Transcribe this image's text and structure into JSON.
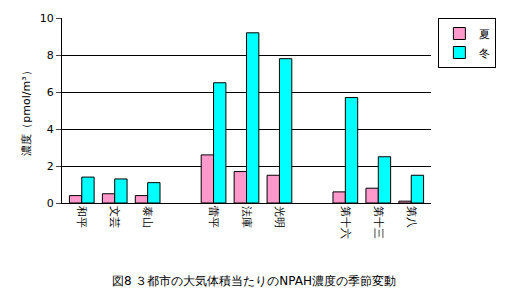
{
  "chart_data": {
    "type": "bar",
    "title": "図8 ３都市の大気体積当たりのNPAH濃度の季節変動",
    "y_label": "濃度（pmol/m³）",
    "categories": [
      "和平",
      "文芸",
      "泰山",
      null,
      "蕾平",
      "法庫",
      "光明",
      null,
      "第十六",
      "第十三",
      "第八"
    ],
    "series": [
      {
        "name": "夏",
        "color": "#ff99cc",
        "values": [
          0.4,
          0.5,
          0.4,
          null,
          2.6,
          1.7,
          1.5,
          null,
          0.6,
          0.8,
          0.1
        ]
      },
      {
        "name": "冬",
        "color": "#00ffff",
        "values": [
          1.4,
          1.3,
          1.1,
          null,
          6.5,
          9.2,
          7.8,
          null,
          5.7,
          2.5,
          1.5
        ]
      }
    ],
    "ylim": [
      0,
      10
    ],
    "yticks": [
      0,
      2,
      4,
      6,
      8,
      10
    ],
    "grid": true,
    "legend": "top right"
  }
}
